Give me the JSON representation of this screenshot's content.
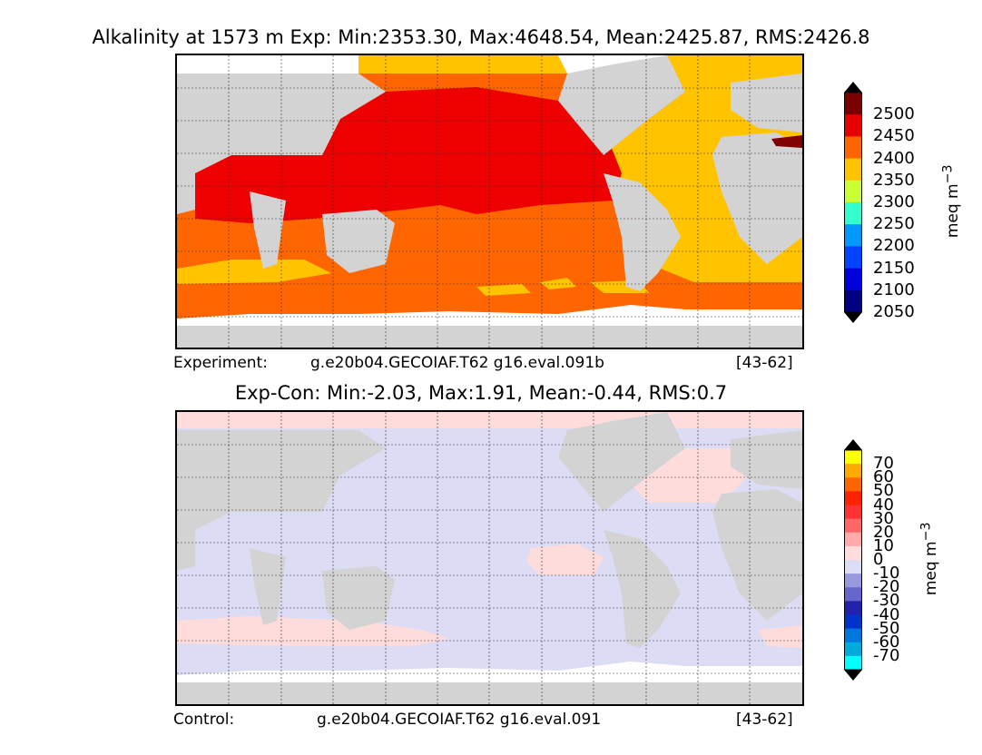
{
  "panel_top": {
    "title": "Alkalinity at 1573 m Exp: Min:2353.30, Max:4648.54, Mean:2425.87, RMS:2426.8",
    "footer_left": "Experiment:",
    "footer_case": "g.e20b04.GECOIAF.T62 g16.eval.091b",
    "footer_years": "[43-62]",
    "colorbar": {
      "unit": "meq m",
      "unit_exponent": "−3",
      "ticks": [
        "2500",
        "2450",
        "2400",
        "2350",
        "2300",
        "2250",
        "2200",
        "2150",
        "2100",
        "2050"
      ],
      "colors": [
        "#7a0000",
        "#e60000",
        "#ff6600",
        "#ffc300",
        "#ccff33",
        "#33ffcc",
        "#0099ff",
        "#0044ff",
        "#0000dd",
        "#000080"
      ]
    }
  },
  "panel_bottom": {
    "title": "Exp-Con: Min:-2.03, Max:1.91, Mean:-0.44, RMS:0.7",
    "footer_left": "Control:",
    "footer_case": "g.e20b04.GECOIAF.T62 g16.eval.091",
    "footer_years": "[43-62]",
    "colorbar": {
      "unit": "meq m",
      "unit_exponent": "−3",
      "ticks": [
        "70",
        "60",
        "50",
        "40",
        "30",
        "20",
        "10",
        "0",
        "-10",
        "-20",
        "-30",
        "-40",
        "-50",
        "-60",
        "-70"
      ],
      "colors": [
        "#ffff00",
        "#ffaa00",
        "#ff6600",
        "#ff2200",
        "#ff3333",
        "#ff6666",
        "#ffaaaa",
        "#ffdddd",
        "#ddddf5",
        "#9999dd",
        "#6666cc",
        "#2222aa",
        "#0033cc",
        "#0077dd",
        "#00aadd",
        "#00ffff"
      ]
    }
  },
  "colors": {
    "land": "#d3d3d3",
    "no_data": "#ffffff",
    "pacific_high": "#ee0000",
    "orange_band": "#ff6600",
    "yellow_band": "#ffc300",
    "dark_red": "#800000",
    "diff_negative": "#dcdcf5",
    "diff_positive": "#ffdcdc"
  }
}
